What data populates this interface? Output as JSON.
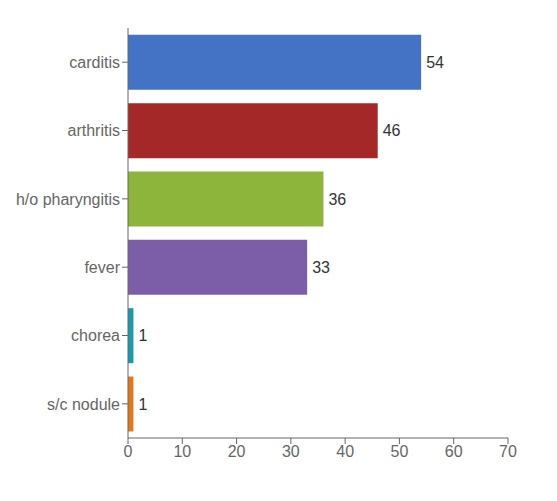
{
  "chart_data": {
    "type": "bar",
    "orientation": "horizontal",
    "categories": [
      "s/c nodule",
      "chorea",
      "fever",
      "h/o pharyngitis",
      "arthritis",
      "carditis"
    ],
    "values": [
      1,
      1,
      33,
      36,
      46,
      54
    ],
    "colors": [
      "#E07820",
      "#1B9AAA",
      "#7B5EA7",
      "#8DB53C",
      "#A52828",
      "#4472C4"
    ],
    "xlim": [
      0,
      70
    ],
    "xticks": [
      0,
      10,
      20,
      30,
      40,
      50,
      60,
      70
    ],
    "data_labels": true,
    "grid": false
  }
}
